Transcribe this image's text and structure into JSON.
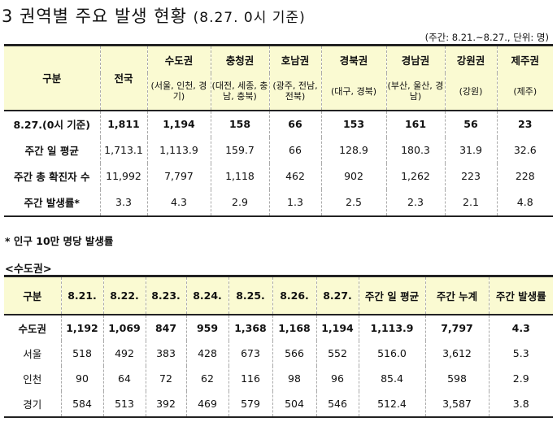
{
  "title": {
    "main": "3 권역별 주요 발생 현황",
    "paren": "(8.27. 0시 기준)"
  },
  "unit_note": "(주간: 8.21.~8.27., 단위: 명)",
  "table1": {
    "corner": "구분",
    "national": "전국",
    "regions": [
      {
        "name": "수도권",
        "sub": "(서울, 인천, 경기)"
      },
      {
        "name": "충청권",
        "sub": "(대전, 세종, 충남, 충북)"
      },
      {
        "name": "호남권",
        "sub": "(광주, 전남, 전북)"
      },
      {
        "name": "경북권",
        "sub": "(대구, 경북)"
      },
      {
        "name": "경남권",
        "sub": "(부산, 울산, 경남)"
      },
      {
        "name": "강원권",
        "sub": "(강원)"
      },
      {
        "name": "제주권",
        "sub": "(제주)"
      }
    ],
    "rows": [
      {
        "label": "8.27.(0시 기준)",
        "values": [
          "1,811",
          "1,194",
          "158",
          "66",
          "153",
          "161",
          "56",
          "23"
        ]
      },
      {
        "label": "주간 일 평균",
        "values": [
          "1,713.1",
          "1,113.9",
          "159.7",
          "66",
          "128.9",
          "180.3",
          "31.9",
          "32.6"
        ]
      },
      {
        "label": "주간 총 확진자 수",
        "values": [
          "11,992",
          "7,797",
          "1,118",
          "462",
          "902",
          "1,262",
          "223",
          "228"
        ]
      },
      {
        "label": "주간 발생률*",
        "values": [
          "3.3",
          "4.3",
          "2.9",
          "1.3",
          "2.5",
          "2.3",
          "2.1",
          "4.8"
        ]
      }
    ]
  },
  "footnote": "* 인구 10만 명당 발생률",
  "subtitle": "<수도권>",
  "table2": {
    "headers": [
      "구분",
      "8.21.",
      "8.22.",
      "8.23.",
      "8.24.",
      "8.25.",
      "8.26.",
      "8.27.",
      "주간 일 평균",
      "주간 누계",
      "주간 발생률"
    ],
    "rows": [
      {
        "label": "수도권",
        "values": [
          "1,192",
          "1,069",
          "847",
          "959",
          "1,368",
          "1,168",
          "1,194",
          "1,113.9",
          "7,797",
          "4.3"
        ]
      },
      {
        "label": "서울",
        "values": [
          "518",
          "492",
          "383",
          "428",
          "673",
          "566",
          "552",
          "516.0",
          "3,612",
          "5.3"
        ]
      },
      {
        "label": "인천",
        "values": [
          "90",
          "64",
          "72",
          "62",
          "116",
          "98",
          "96",
          "85.4",
          "598",
          "2.9"
        ]
      },
      {
        "label": "경기",
        "values": [
          "584",
          "513",
          "392",
          "469",
          "579",
          "504",
          "546",
          "512.4",
          "3,587",
          "3.8"
        ]
      }
    ]
  }
}
